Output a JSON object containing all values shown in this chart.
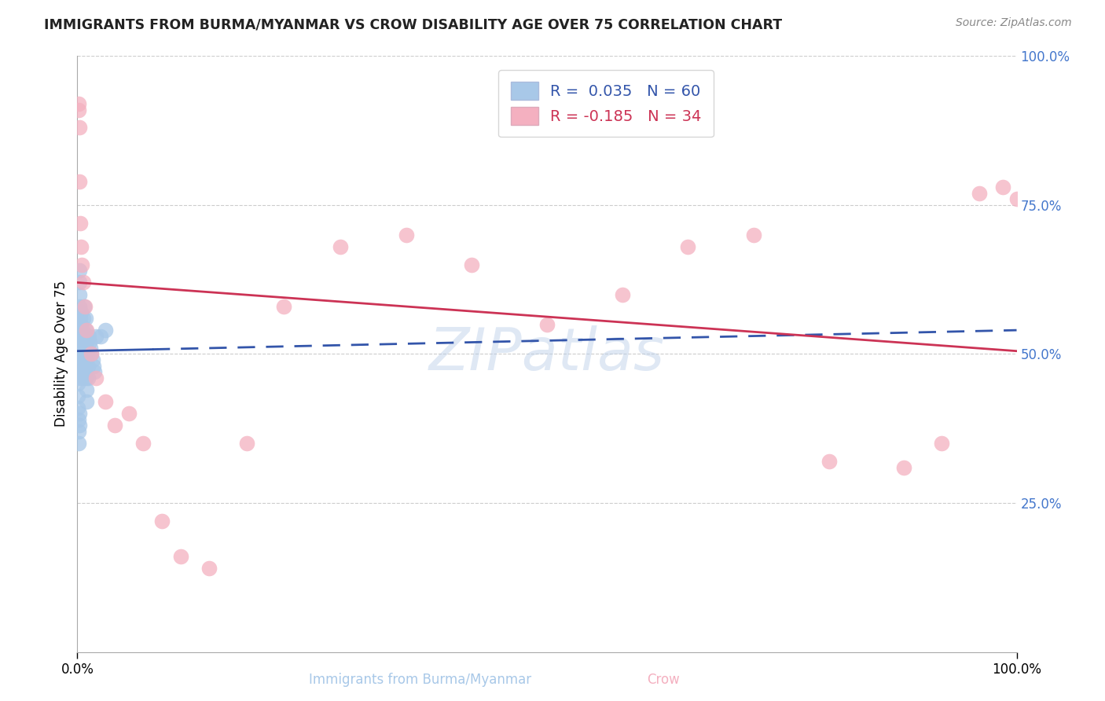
{
  "title": "IMMIGRANTS FROM BURMA/MYANMAR VS CROW DISABILITY AGE OVER 75 CORRELATION CHART",
  "source": "Source: ZipAtlas.com",
  "ylabel": "Disability Age Over 75",
  "legend_blue_r": "R =  0.035",
  "legend_blue_n": "N = 60",
  "legend_pink_r": "R = -0.185",
  "legend_pink_n": "N = 34",
  "blue_color": "#a8c8e8",
  "pink_color": "#f4b0c0",
  "blue_line_color": "#3355aa",
  "pink_line_color": "#cc3355",
  "right_axis_color": "#4477cc",
  "watermark": "ZIPatlas",
  "blue_points_x": [
    0.05,
    0.08,
    0.1,
    0.12,
    0.15,
    0.18,
    0.2,
    0.22,
    0.25,
    0.28,
    0.3,
    0.32,
    0.35,
    0.38,
    0.4,
    0.42,
    0.45,
    0.48,
    0.5,
    0.52,
    0.55,
    0.58,
    0.6,
    0.62,
    0.65,
    0.68,
    0.7,
    0.72,
    0.75,
    0.78,
    0.8,
    0.82,
    0.85,
    0.88,
    0.9,
    0.92,
    0.95,
    0.98,
    1.0,
    1.05,
    1.1,
    1.15,
    1.2,
    1.3,
    1.4,
    1.5,
    1.6,
    1.7,
    1.8,
    2.0,
    2.5,
    3.0,
    0.06,
    0.07,
    0.09,
    0.11,
    0.13,
    0.16,
    0.19,
    0.23
  ],
  "blue_points_y": [
    48.0,
    46.0,
    50.0,
    52.0,
    55.0,
    58.0,
    60.0,
    62.0,
    64.0,
    56.0,
    54.0,
    52.0,
    50.0,
    53.0,
    55.0,
    57.0,
    48.0,
    46.0,
    52.0,
    54.0,
    53.0,
    51.0,
    49.0,
    47.0,
    56.0,
    58.0,
    53.0,
    51.0,
    49.0,
    47.0,
    52.0,
    50.0,
    48.0,
    46.0,
    54.0,
    56.0,
    44.0,
    42.0,
    52.0,
    50.0,
    48.0,
    46.0,
    53.0,
    52.0,
    51.0,
    50.0,
    49.0,
    48.0,
    47.0,
    53.0,
    53.0,
    54.0,
    45.0,
    43.0,
    41.0,
    39.0,
    37.0,
    35.0,
    38.0,
    40.0
  ],
  "pink_points_x": [
    0.1,
    0.15,
    0.2,
    0.25,
    0.3,
    0.4,
    0.5,
    0.6,
    0.8,
    1.0,
    1.5,
    2.0,
    3.0,
    4.0,
    5.5,
    7.0,
    9.0,
    11.0,
    14.0,
    18.0,
    22.0,
    28.0,
    35.0,
    42.0,
    50.0,
    58.0,
    65.0,
    72.0,
    80.0,
    88.0,
    92.0,
    96.0,
    98.5,
    100.0
  ],
  "pink_points_y": [
    91.0,
    92.0,
    88.0,
    79.0,
    72.0,
    68.0,
    65.0,
    62.0,
    58.0,
    54.0,
    50.0,
    46.0,
    42.0,
    38.0,
    40.0,
    35.0,
    22.0,
    16.0,
    14.0,
    35.0,
    58.0,
    68.0,
    70.0,
    65.0,
    55.0,
    60.0,
    68.0,
    70.0,
    32.0,
    31.0,
    35.0,
    77.0,
    78.0,
    76.0
  ],
  "blue_trend_y_start": 50.5,
  "blue_trend_y_end": 54.0,
  "pink_trend_y_start": 62.0,
  "pink_trend_y_end": 50.5,
  "xlim": [
    0.0,
    100.0
  ],
  "ylim": [
    0.0,
    100.0
  ],
  "background_color": "#ffffff",
  "grid_color": "#cccccc",
  "label_blue": "Immigrants from Burma/Myanmar",
  "label_pink": "Crow"
}
